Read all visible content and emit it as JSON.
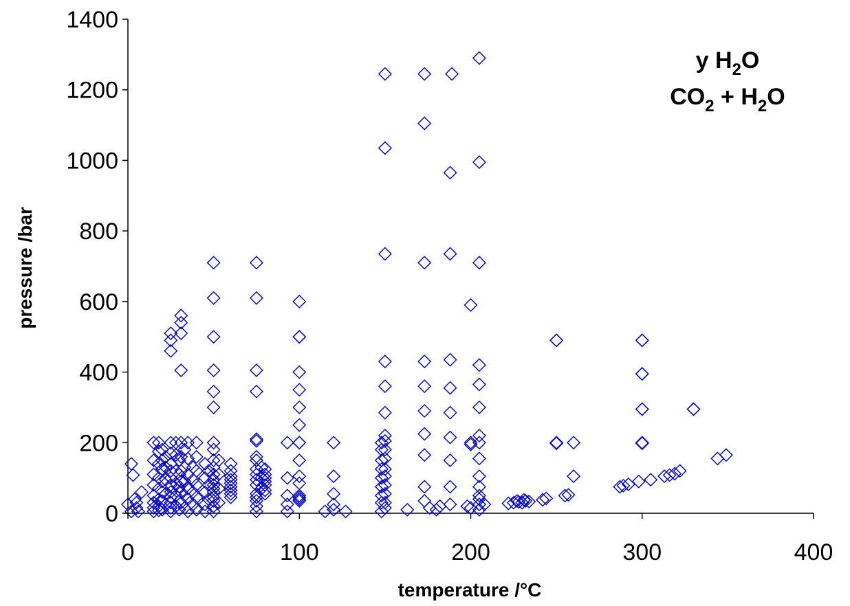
{
  "chart_data": {
    "type": "scatter",
    "xlabel": "temperature /°C",
    "ylabel": "pressure /bar",
    "xlim": [
      0,
      400
    ],
    "ylim": [
      0,
      1400
    ],
    "xticks": [
      "0",
      "100",
      "200",
      "300",
      "400"
    ],
    "yticks": [
      "0",
      "200",
      "400",
      "600",
      "800",
      "1000",
      "1200",
      "1400"
    ],
    "grid": false,
    "marker": "diamond-open",
    "marker_color": "#0000cc",
    "annotation": {
      "line1": {
        "base": "y H",
        "sub": "2",
        "after": "O"
      },
      "line2": {
        "p1": "CO",
        "sub1": "2",
        "p2": " + H",
        "sub2": "2",
        "p3": "O"
      }
    },
    "series": [
      {
        "points": [
          [
            0,
            25
          ],
          [
            2,
            140
          ],
          [
            3,
            108
          ],
          [
            4,
            40
          ],
          [
            5,
            15
          ],
          [
            6,
            5
          ],
          [
            8,
            60
          ],
          [
            2,
            5
          ],
          [
            5,
            30
          ],
          [
            15,
            200
          ],
          [
            15,
            150
          ],
          [
            15,
            110
          ],
          [
            15,
            80
          ],
          [
            15,
            50
          ],
          [
            15,
            30
          ],
          [
            15,
            15
          ],
          [
            15,
            5
          ],
          [
            18,
            200
          ],
          [
            18,
            175
          ],
          [
            18,
            140
          ],
          [
            18,
            100
          ],
          [
            18,
            70
          ],
          [
            18,
            40
          ],
          [
            18,
            20
          ],
          [
            18,
            8
          ],
          [
            20,
            180
          ],
          [
            20,
            150
          ],
          [
            20,
            125
          ],
          [
            20,
            90
          ],
          [
            20,
            60
          ],
          [
            20,
            35
          ],
          [
            20,
            10
          ],
          [
            22,
            160
          ],
          [
            22,
            130
          ],
          [
            22,
            95
          ],
          [
            22,
            55
          ],
          [
            22,
            25
          ],
          [
            25,
            510
          ],
          [
            25,
            490
          ],
          [
            25,
            460
          ],
          [
            25,
            200
          ],
          [
            25,
            170
          ],
          [
            25,
            140
          ],
          [
            25,
            120
          ],
          [
            25,
            100
          ],
          [
            25,
            80
          ],
          [
            25,
            60
          ],
          [
            25,
            45
          ],
          [
            25,
            30
          ],
          [
            25,
            15
          ],
          [
            25,
            5
          ],
          [
            28,
            200
          ],
          [
            28,
            165
          ],
          [
            28,
            120
          ],
          [
            28,
            85
          ],
          [
            28,
            50
          ],
          [
            28,
            20
          ],
          [
            30,
            150
          ],
          [
            30,
            110
          ],
          [
            30,
            75
          ],
          [
            30,
            35
          ],
          [
            30,
            10
          ],
          [
            31,
            560
          ],
          [
            31,
            540
          ],
          [
            31,
            510
          ],
          [
            31,
            405
          ],
          [
            31,
            200
          ],
          [
            31,
            160
          ],
          [
            31,
            120
          ],
          [
            31,
            90
          ],
          [
            31,
            60
          ],
          [
            31,
            30
          ],
          [
            33,
            180
          ],
          [
            33,
            130
          ],
          [
            33,
            90
          ],
          [
            33,
            50
          ],
          [
            33,
            15
          ],
          [
            35,
            200
          ],
          [
            35,
            155
          ],
          [
            35,
            110
          ],
          [
            35,
            70
          ],
          [
            35,
            40
          ],
          [
            35,
            5
          ],
          [
            38,
            130
          ],
          [
            38,
            95
          ],
          [
            38,
            60
          ],
          [
            38,
            25
          ],
          [
            40,
            200
          ],
          [
            40,
            160
          ],
          [
            40,
            120
          ],
          [
            40,
            80
          ],
          [
            40,
            45
          ],
          [
            40,
            10
          ],
          [
            45,
            140
          ],
          [
            45,
            100
          ],
          [
            45,
            60
          ],
          [
            45,
            25
          ],
          [
            45,
            5
          ],
          [
            47,
            120
          ],
          [
            47,
            80
          ],
          [
            47,
            40
          ],
          [
            50,
            710
          ],
          [
            50,
            610
          ],
          [
            50,
            500
          ],
          [
            50,
            405
          ],
          [
            50,
            345
          ],
          [
            50,
            300
          ],
          [
            50,
            200
          ],
          [
            50,
            180
          ],
          [
            50,
            150
          ],
          [
            50,
            130
          ],
          [
            50,
            110
          ],
          [
            50,
            95
          ],
          [
            50,
            80
          ],
          [
            50,
            70
          ],
          [
            50,
            60
          ],
          [
            50,
            45
          ],
          [
            50,
            35
          ],
          [
            50,
            20
          ],
          [
            50,
            5
          ],
          [
            53,
            150
          ],
          [
            53,
            110
          ],
          [
            53,
            70
          ],
          [
            53,
            30
          ],
          [
            60,
            140
          ],
          [
            60,
            120
          ],
          [
            60,
            105
          ],
          [
            60,
            95
          ],
          [
            60,
            85
          ],
          [
            60,
            75
          ],
          [
            60,
            65
          ],
          [
            60,
            55
          ],
          [
            60,
            45
          ],
          [
            75,
            710
          ],
          [
            75,
            610
          ],
          [
            75,
            405
          ],
          [
            75,
            345
          ],
          [
            75,
            210
          ],
          [
            75,
            205
          ],
          [
            75,
            160
          ],
          [
            75,
            150
          ],
          [
            75,
            125
          ],
          [
            75,
            110
          ],
          [
            75,
            95
          ],
          [
            75,
            80
          ],
          [
            75,
            55
          ],
          [
            75,
            45
          ],
          [
            75,
            35
          ],
          [
            75,
            20
          ],
          [
            75,
            5
          ],
          [
            78,
            130
          ],
          [
            78,
            100
          ],
          [
            78,
            70
          ],
          [
            80,
            125
          ],
          [
            80,
            110
          ],
          [
            80,
            100
          ],
          [
            80,
            90
          ],
          [
            80,
            80
          ],
          [
            80,
            65
          ],
          [
            80,
            55
          ],
          [
            93,
            200
          ],
          [
            93,
            100
          ],
          [
            93,
            50
          ],
          [
            93,
            25
          ],
          [
            93,
            5
          ],
          [
            100,
            600
          ],
          [
            100,
            500
          ],
          [
            100,
            500
          ],
          [
            100,
            400
          ],
          [
            100,
            350
          ],
          [
            100,
            300
          ],
          [
            100,
            250
          ],
          [
            100,
            200
          ],
          [
            100,
            200
          ],
          [
            100,
            150
          ],
          [
            100,
            105
          ],
          [
            100,
            85
          ],
          [
            100,
            50
          ],
          [
            100,
            45
          ],
          [
            100,
            40
          ],
          [
            100,
            35
          ],
          [
            115,
            5
          ],
          [
            120,
            200
          ],
          [
            120,
            105
          ],
          [
            120,
            55
          ],
          [
            120,
            25
          ],
          [
            120,
            10
          ],
          [
            127,
            5
          ],
          [
            148,
            200
          ],
          [
            148,
            180
          ],
          [
            148,
            150
          ],
          [
            148,
            125
          ],
          [
            148,
            100
          ],
          [
            148,
            75
          ],
          [
            148,
            50
          ],
          [
            148,
            30
          ],
          [
            148,
            5
          ],
          [
            150,
            1245
          ],
          [
            150,
            1035
          ],
          [
            150,
            735
          ],
          [
            150,
            430
          ],
          [
            150,
            360
          ],
          [
            150,
            285
          ],
          [
            150,
            220
          ],
          [
            150,
            205
          ],
          [
            150,
            180
          ],
          [
            150,
            155
          ],
          [
            150,
            125
          ],
          [
            150,
            105
          ],
          [
            150,
            80
          ],
          [
            150,
            55
          ],
          [
            150,
            30
          ],
          [
            150,
            15
          ],
          [
            163,
            10
          ],
          [
            173,
            1245
          ],
          [
            173,
            1105
          ],
          [
            173,
            710
          ],
          [
            173,
            430
          ],
          [
            173,
            360
          ],
          [
            173,
            290
          ],
          [
            173,
            225
          ],
          [
            173,
            165
          ],
          [
            173,
            75
          ],
          [
            173,
            35
          ],
          [
            176,
            15
          ],
          [
            180,
            10
          ],
          [
            182,
            20
          ],
          [
            189,
            1245
          ],
          [
            188,
            965
          ],
          [
            188,
            735
          ],
          [
            188,
            435
          ],
          [
            188,
            355
          ],
          [
            188,
            285
          ],
          [
            188,
            215
          ],
          [
            188,
            150
          ],
          [
            188,
            75
          ],
          [
            188,
            25
          ],
          [
            198,
            20
          ],
          [
            200,
            590
          ],
          [
            200,
            200
          ],
          [
            200,
            195
          ],
          [
            200,
            15
          ],
          [
            205,
            1290
          ],
          [
            205,
            995
          ],
          [
            205,
            710
          ],
          [
            205,
            420
          ],
          [
            205,
            365
          ],
          [
            205,
            300
          ],
          [
            205,
            220
          ],
          [
            205,
            200
          ],
          [
            205,
            155
          ],
          [
            205,
            105
          ],
          [
            205,
            75
          ],
          [
            205,
            50
          ],
          [
            205,
            40
          ],
          [
            205,
            25
          ],
          [
            205,
            10
          ],
          [
            208,
            25
          ],
          [
            222,
            28
          ],
          [
            225,
            30
          ],
          [
            227,
            35
          ],
          [
            228,
            32
          ],
          [
            230,
            30
          ],
          [
            231,
            38
          ],
          [
            232,
            35
          ],
          [
            234,
            33
          ],
          [
            242,
            38
          ],
          [
            244,
            42
          ],
          [
            250,
            490
          ],
          [
            250,
            490
          ],
          [
            250,
            200
          ],
          [
            250,
            198
          ],
          [
            255,
            50
          ],
          [
            257,
            52
          ],
          [
            260,
            200
          ],
          [
            260,
            105
          ],
          [
            287,
            75
          ],
          [
            289,
            78
          ],
          [
            292,
            82
          ],
          [
            298,
            90
          ],
          [
            300,
            490
          ],
          [
            300,
            490
          ],
          [
            300,
            395
          ],
          [
            300,
            395
          ],
          [
            300,
            295
          ],
          [
            300,
            295
          ],
          [
            300,
            200
          ],
          [
            300,
            198
          ],
          [
            305,
            95
          ],
          [
            313,
            105
          ],
          [
            316,
            108
          ],
          [
            319,
            112
          ],
          [
            322,
            120
          ],
          [
            330,
            295
          ],
          [
            330,
            295
          ],
          [
            344,
            155
          ],
          [
            349,
            165
          ]
        ]
      }
    ]
  }
}
